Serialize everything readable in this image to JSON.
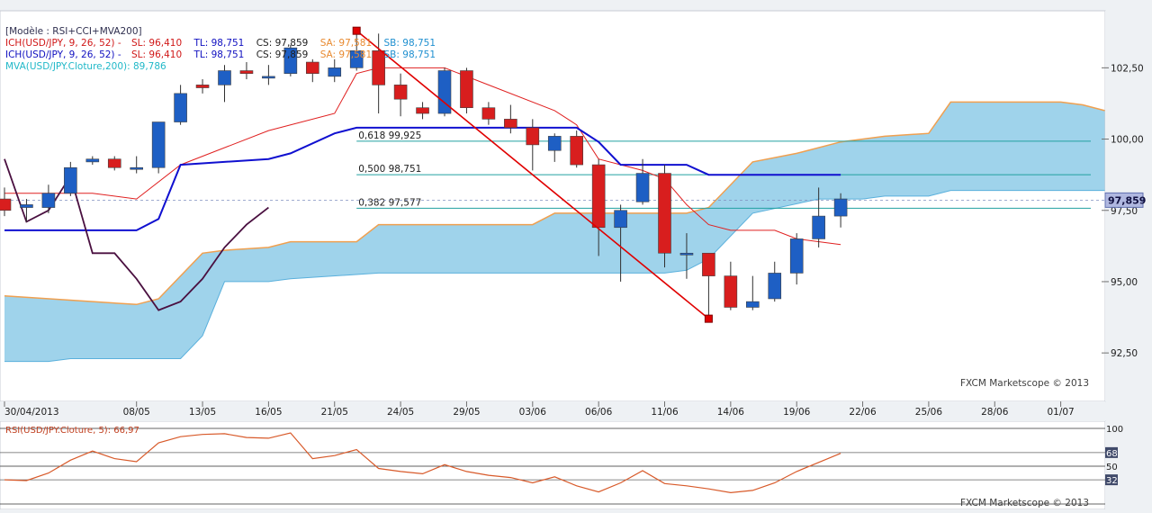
{
  "legend": {
    "model": "[Modèle : RSI+CCI+MVA200]",
    "ich_red": {
      "label": "ICH(USD/JPY, 9, 26, 52) -",
      "sl": "SL: 96,410",
      "tl": "TL: 98,751",
      "cs": "CS: 97,859",
      "sa": "SA: 97,581",
      "sb": "SB: 98,751"
    },
    "ich_blue": {
      "label": "ICH(USD/JPY, 9, 26, 52) -",
      "sl": "SL: 96,410",
      "tl": "TL: 98,751",
      "cs": "CS: 97,859",
      "sa": "SA: 97,581",
      "sb": "SB: 98,751"
    },
    "mva": "MVA(USD/JPY.Cloture,200): 89,786"
  },
  "watermark": "FXCM Marketscope © 2013",
  "rsi_label": "RSI(USD/JPY.Cloture, 5): 66,97",
  "current_price": "97,859",
  "colors": {
    "up": "#1e5fc4",
    "down": "#d81e1e",
    "cloud": "#8ecbe8",
    "cloud_edge": "#f0a050",
    "tenkan": "#e02020",
    "kijun": "#1010d0",
    "chikou": "#4a1040",
    "rsi": "#d85a2a",
    "trend": "#e00000",
    "fib": "#20a0a0",
    "price_tag": "#b0b8e0",
    "panel_bg": "#eef1f4"
  },
  "chart_data": [
    {
      "type": "candlestick",
      "title": "USD/JPY",
      "ylim": [
        90.8,
        104.5
      ],
      "yticks": [
        "102,50",
        "100,00",
        "97,50",
        "95,00",
        "92,50"
      ],
      "ytick_values": [
        102.5,
        100.0,
        97.5,
        95.0,
        92.5
      ],
      "xticks": [
        {
          "label": "30/04/2013",
          "i": 0
        },
        {
          "label": "08/05",
          "i": 6
        },
        {
          "label": "13/05",
          "i": 9
        },
        {
          "label": "16/05",
          "i": 12
        },
        {
          "label": "21/05",
          "i": 15
        },
        {
          "label": "24/05",
          "i": 18
        },
        {
          "label": "29/05",
          "i": 21
        },
        {
          "label": "03/06",
          "i": 24
        },
        {
          "label": "06/06",
          "i": 27
        },
        {
          "label": "11/06",
          "i": 30
        },
        {
          "label": "14/06",
          "i": 33
        },
        {
          "label": "19/06",
          "i": 36
        },
        {
          "label": "22/06",
          "i": 39
        },
        {
          "label": "25/06",
          "i": 42
        },
        {
          "label": "28/06",
          "i": 45
        },
        {
          "label": "01/07",
          "i": 48
        }
      ],
      "candles": [
        {
          "i": 0,
          "o": 97.9,
          "h": 98.3,
          "l": 97.3,
          "c": 97.5
        },
        {
          "i": 1,
          "o": 97.6,
          "h": 97.9,
          "l": 97.1,
          "c": 97.7
        },
        {
          "i": 2,
          "o": 97.6,
          "h": 98.4,
          "l": 97.4,
          "c": 98.1
        },
        {
          "i": 3,
          "o": 98.1,
          "h": 99.2,
          "l": 98.0,
          "c": 99.0
        },
        {
          "i": 4,
          "o": 99.2,
          "h": 99.4,
          "l": 99.1,
          "c": 99.3
        },
        {
          "i": 5,
          "o": 99.3,
          "h": 99.4,
          "l": 98.9,
          "c": 99.0
        },
        {
          "i": 6,
          "o": 99.0,
          "h": 99.4,
          "l": 98.8,
          "c": 99.0
        },
        {
          "i": 7,
          "o": 99.0,
          "h": 100.6,
          "l": 98.8,
          "c": 100.6
        },
        {
          "i": 8,
          "o": 100.6,
          "h": 101.9,
          "l": 100.5,
          "c": 101.6
        },
        {
          "i": 9,
          "o": 101.9,
          "h": 102.1,
          "l": 101.6,
          "c": 101.8
        },
        {
          "i": 10,
          "o": 101.9,
          "h": 102.6,
          "l": 101.3,
          "c": 102.4
        },
        {
          "i": 11,
          "o": 102.4,
          "h": 102.7,
          "l": 102.1,
          "c": 102.3
        },
        {
          "i": 12,
          "o": 102.2,
          "h": 102.6,
          "l": 101.9,
          "c": 102.2
        },
        {
          "i": 13,
          "o": 102.3,
          "h": 103.3,
          "l": 102.2,
          "c": 103.2
        },
        {
          "i": 14,
          "o": 102.7,
          "h": 102.8,
          "l": 102.0,
          "c": 102.3
        },
        {
          "i": 15,
          "o": 102.2,
          "h": 102.8,
          "l": 102.0,
          "c": 102.5
        },
        {
          "i": 16,
          "o": 102.5,
          "h": 103.8,
          "l": 102.4,
          "c": 103.1
        },
        {
          "i": 17,
          "o": 103.1,
          "h": 103.7,
          "l": 100.9,
          "c": 101.9
        },
        {
          "i": 18,
          "o": 101.9,
          "h": 102.3,
          "l": 100.8,
          "c": 101.4
        },
        {
          "i": 19,
          "o": 101.1,
          "h": 101.3,
          "l": 100.7,
          "c": 100.9
        },
        {
          "i": 20,
          "o": 100.9,
          "h": 102.5,
          "l": 100.8,
          "c": 102.4
        },
        {
          "i": 21,
          "o": 102.4,
          "h": 102.5,
          "l": 100.9,
          "c": 101.1
        },
        {
          "i": 22,
          "o": 101.1,
          "h": 101.3,
          "l": 100.5,
          "c": 100.7
        },
        {
          "i": 23,
          "o": 100.7,
          "h": 101.2,
          "l": 100.2,
          "c": 100.4
        },
        {
          "i": 24,
          "o": 100.4,
          "h": 100.7,
          "l": 98.9,
          "c": 99.8
        },
        {
          "i": 25,
          "o": 99.6,
          "h": 100.2,
          "l": 99.2,
          "c": 100.1
        },
        {
          "i": 26,
          "o": 100.1,
          "h": 100.3,
          "l": 99.0,
          "c": 99.1
        },
        {
          "i": 27,
          "o": 99.1,
          "h": 99.3,
          "l": 95.9,
          "c": 96.9
        },
        {
          "i": 28,
          "o": 96.9,
          "h": 97.7,
          "l": 95.0,
          "c": 97.5
        },
        {
          "i": 29,
          "o": 97.8,
          "h": 99.3,
          "l": 97.7,
          "c": 98.8
        },
        {
          "i": 30,
          "o": 98.8,
          "h": 99.1,
          "l": 95.5,
          "c": 96.0
        },
        {
          "i": 31,
          "o": 96.0,
          "h": 96.7,
          "l": 95.1,
          "c": 96.0
        },
        {
          "i": 32,
          "o": 96.0,
          "h": 96.0,
          "l": 93.8,
          "c": 95.2
        },
        {
          "i": 33,
          "o": 95.2,
          "h": 95.7,
          "l": 94.0,
          "c": 94.1
        },
        {
          "i": 34,
          "o": 94.1,
          "h": 95.2,
          "l": 94.0,
          "c": 94.3
        },
        {
          "i": 35,
          "o": 94.4,
          "h": 95.7,
          "l": 94.3,
          "c": 95.3
        },
        {
          "i": 36,
          "o": 95.3,
          "h": 96.7,
          "l": 94.9,
          "c": 96.5
        },
        {
          "i": 37,
          "o": 96.5,
          "h": 98.3,
          "l": 96.2,
          "c": 97.3
        },
        {
          "i": 38,
          "o": 97.3,
          "h": 98.1,
          "l": 96.9,
          "c": 97.9
        }
      ],
      "tenkan": [
        [
          0,
          98.1
        ],
        [
          4,
          98.1
        ],
        [
          6,
          97.9
        ],
        [
          8,
          99.1
        ],
        [
          12,
          100.3
        ],
        [
          15,
          100.9
        ],
        [
          16,
          102.3
        ],
        [
          17,
          102.5
        ],
        [
          20,
          102.5
        ],
        [
          22,
          101.9
        ],
        [
          25,
          101.0
        ],
        [
          26,
          100.5
        ],
        [
          27,
          99.3
        ],
        [
          29,
          98.9
        ],
        [
          30,
          98.6
        ],
        [
          31,
          97.7
        ],
        [
          32,
          97.0
        ],
        [
          33,
          96.8
        ],
        [
          35,
          96.8
        ],
        [
          36,
          96.5
        ],
        [
          38,
          96.3
        ]
      ],
      "kijun": [
        [
          0,
          96.8
        ],
        [
          6,
          96.8
        ],
        [
          7,
          97.2
        ],
        [
          8,
          99.1
        ],
        [
          12,
          99.3
        ],
        [
          13,
          99.5
        ],
        [
          15,
          100.2
        ],
        [
          16,
          100.4
        ],
        [
          26,
          100.4
        ],
        [
          27,
          99.9
        ],
        [
          28,
          99.1
        ],
        [
          31,
          99.1
        ],
        [
          32,
          98.75
        ],
        [
          38,
          98.75
        ]
      ],
      "chikou": [
        [
          0,
          99.3
        ],
        [
          1,
          97.1
        ],
        [
          2,
          97.5
        ],
        [
          3,
          98.7
        ],
        [
          4,
          96.0
        ],
        [
          5,
          96.0
        ],
        [
          6,
          95.1
        ],
        [
          7,
          94.0
        ],
        [
          8,
          94.3
        ],
        [
          9,
          95.1
        ],
        [
          10,
          96.2
        ],
        [
          11,
          97.0
        ],
        [
          12,
          97.6
        ]
      ],
      "cloud_upper": [
        [
          0,
          94.5
        ],
        [
          6,
          94.2
        ],
        [
          7,
          94.4
        ],
        [
          9,
          96.0
        ],
        [
          10,
          96.1
        ],
        [
          12,
          96.2
        ],
        [
          13,
          96.4
        ],
        [
          16,
          96.4
        ],
        [
          17,
          97.0
        ],
        [
          24,
          97.0
        ],
        [
          25,
          97.4
        ],
        [
          31,
          97.4
        ],
        [
          32,
          97.6
        ],
        [
          34,
          99.2
        ],
        [
          36,
          99.5
        ],
        [
          38,
          99.9
        ],
        [
          40,
          100.1
        ],
        [
          42,
          100.2
        ],
        [
          43,
          101.3
        ],
        [
          48,
          101.3
        ],
        [
          49,
          101.2
        ],
        [
          50,
          101.0
        ]
      ],
      "cloud_lower": [
        [
          0,
          92.2
        ],
        [
          2,
          92.2
        ],
        [
          3,
          92.3
        ],
        [
          8,
          92.3
        ],
        [
          9,
          93.1
        ],
        [
          10,
          95.0
        ],
        [
          12,
          95.0
        ],
        [
          13,
          95.1
        ],
        [
          17,
          95.3
        ],
        [
          25,
          95.3
        ],
        [
          30,
          95.3
        ],
        [
          31,
          95.4
        ],
        [
          32,
          95.8
        ],
        [
          34,
          97.4
        ],
        [
          37,
          97.9
        ],
        [
          39,
          97.9
        ],
        [
          40,
          98.0
        ],
        [
          42,
          98.0
        ],
        [
          43,
          98.2
        ],
        [
          50,
          98.2
        ]
      ],
      "trendline": [
        [
          16,
          103.8
        ],
        [
          32,
          93.7
        ]
      ],
      "fibonacci": [
        {
          "label": "0,618 99,925",
          "value": 99.925
        },
        {
          "label": "0,500 98,751",
          "value": 98.751
        },
        {
          "label": "0,382 97,577",
          "value": 97.577
        }
      ],
      "last_price": 97.859
    },
    {
      "type": "line",
      "title": "RSI(USD/JPY.Cloture, 5)",
      "ylim": [
        0,
        100
      ],
      "levels": [
        100,
        68,
        50,
        32,
        0
      ],
      "level_labels": [
        "100",
        "68",
        "50",
        "32"
      ],
      "series": [
        {
          "name": "RSI(USD/JPY.Cloture, 5)",
          "values": [
            [
              0,
              32
            ],
            [
              1,
              31
            ],
            [
              2,
              41
            ],
            [
              3,
              58
            ],
            [
              4,
              70
            ],
            [
              5,
              60
            ],
            [
              6,
              56
            ],
            [
              7,
              81
            ],
            [
              8,
              89
            ],
            [
              9,
              92
            ],
            [
              10,
              93
            ],
            [
              11,
              88
            ],
            [
              12,
              87
            ],
            [
              13,
              94
            ],
            [
              14,
              60
            ],
            [
              15,
              64
            ],
            [
              16,
              72
            ],
            [
              17,
              47
            ],
            [
              18,
              43
            ],
            [
              19,
              40
            ],
            [
              20,
              52
            ],
            [
              21,
              43
            ],
            [
              22,
              38
            ],
            [
              23,
              35
            ],
            [
              24,
              28
            ],
            [
              25,
              36
            ],
            [
              26,
              24
            ],
            [
              27,
              16
            ],
            [
              28,
              28
            ],
            [
              29,
              44
            ],
            [
              30,
              27
            ],
            [
              31,
              24
            ],
            [
              32,
              20
            ],
            [
              33,
              15
            ],
            [
              34,
              18
            ],
            [
              35,
              28
            ],
            [
              36,
              43
            ],
            [
              37,
              55
            ],
            [
              38,
              67
            ]
          ]
        }
      ]
    }
  ]
}
